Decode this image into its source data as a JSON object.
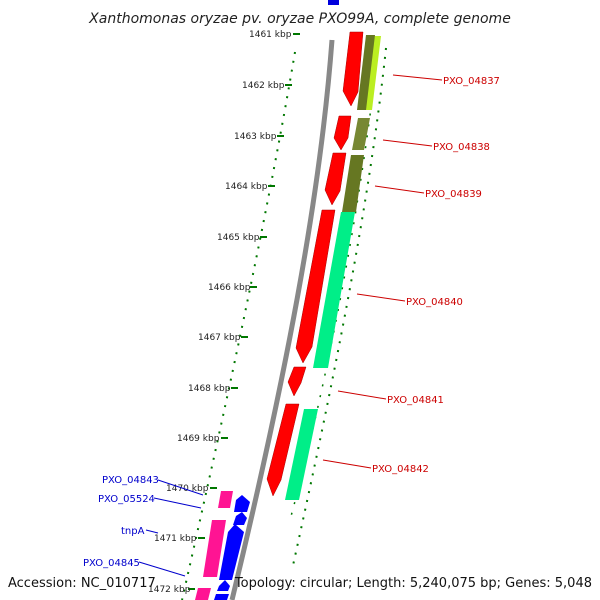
{
  "title": "Xanthomonas oryzae pv. oryzae PXO99A, complete genome",
  "footer": {
    "accession": "Accession: NC_010717",
    "summary": "Topology: circular; Length: 5,240,075 bp; Genes: 5,048"
  },
  "scale_labels": [
    "1461 kbp",
    "1462 kbp",
    "1463 kbp",
    "1464 kbp",
    "1465 kbp",
    "1466 kbp",
    "1467 kbp",
    "1468 kbp",
    "1469 kbp",
    "1470 kbp",
    "1471 kbp",
    "1472 kbp"
  ],
  "right_gene_labels": [
    "PXO_04837",
    "PXO_04838",
    "PXO_04839",
    "PXO_04840",
    "PXO_04841",
    "PXO_04842"
  ],
  "left_gene_labels": [
    "PXO_04843",
    "PXO_05524",
    "tnpA",
    "PXO_04845"
  ],
  "colors": {
    "cds": "#ff0000",
    "blast_green": "#00ee88",
    "blast_olive": "#667722",
    "blast_lime": "#bbee22",
    "blue_feature": "#0000ff",
    "pink_feature": "#ff1493",
    "scale_dots": "#007700",
    "backbone": "#888888",
    "right_label": "#cc0000",
    "left_label": "#0000cc"
  }
}
